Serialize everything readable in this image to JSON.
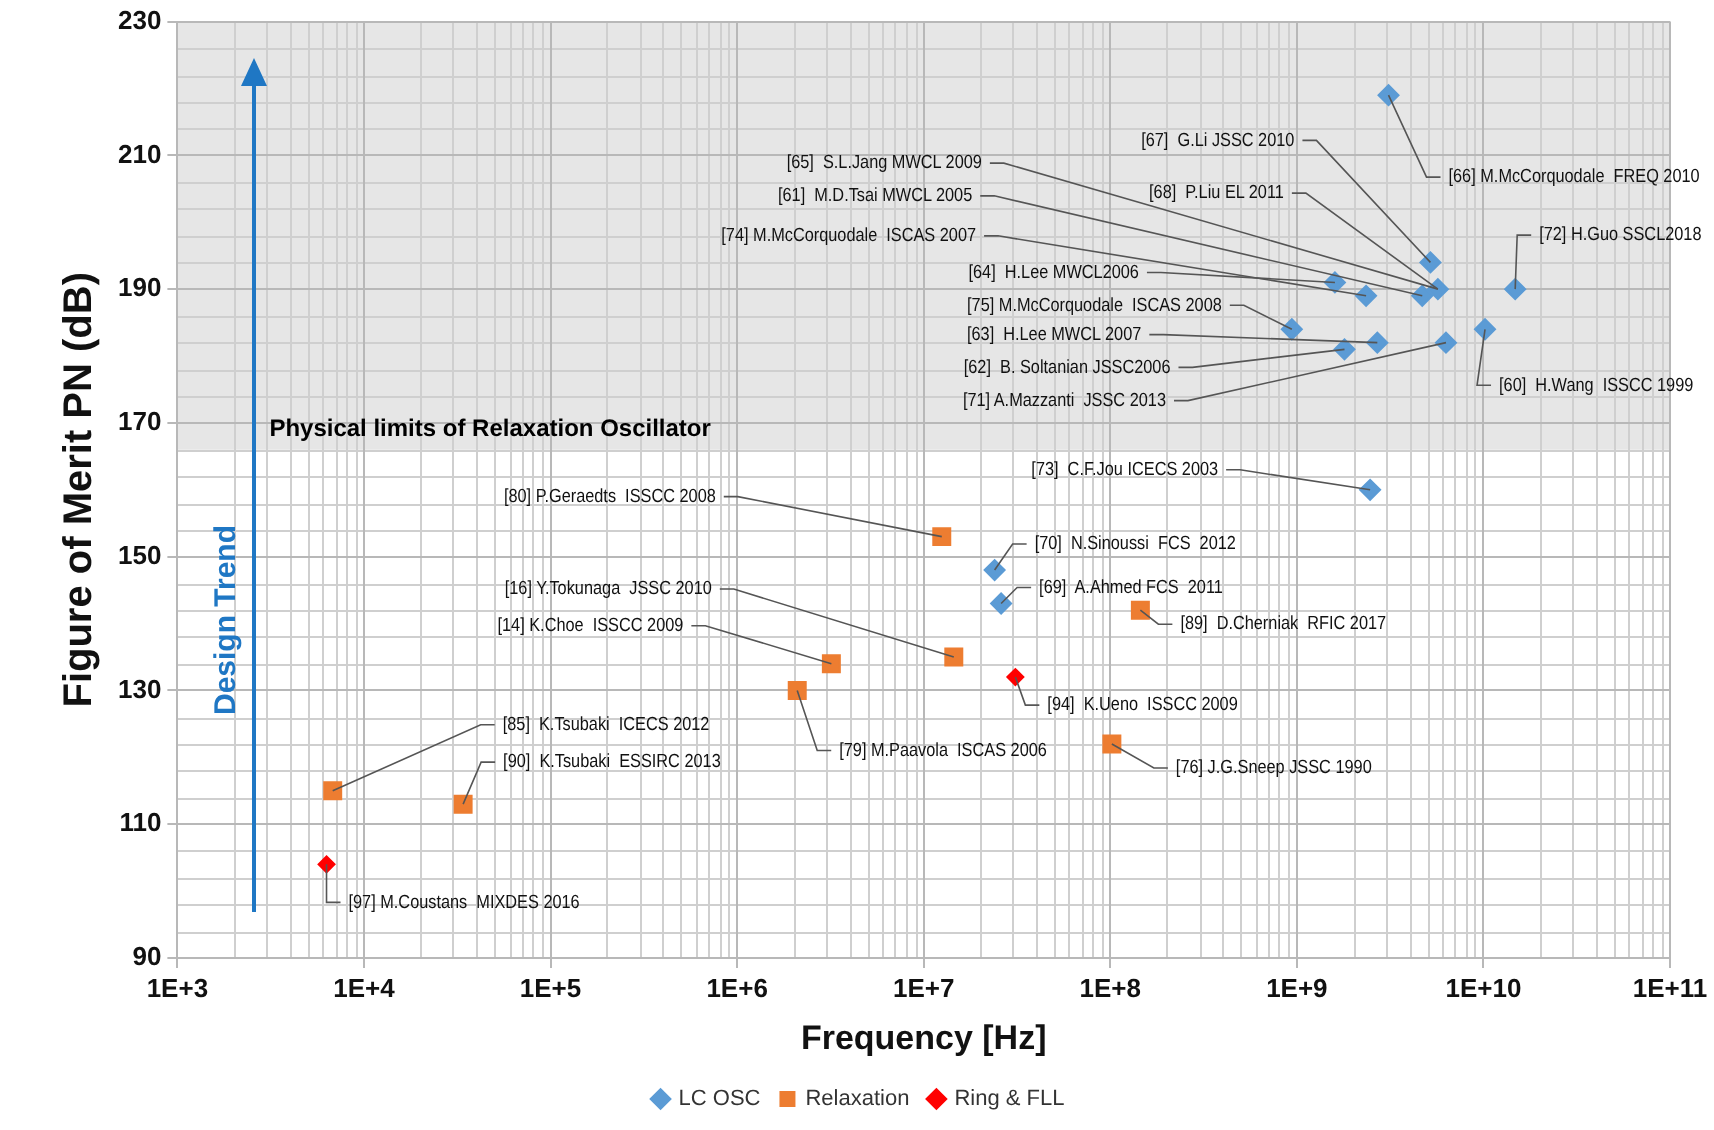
{
  "chart_data": {
    "type": "scatter",
    "xlabel": "Frequency [Hz]",
    "ylabel": "Figure of Merit PN (dB)",
    "log": "x",
    "grid": true,
    "legend": "bottom",
    "xlim": [
      1000,
      100000000000
    ],
    "xticks": [
      {
        "value": 1000,
        "label": "1E+3"
      },
      {
        "value": 10000,
        "label": "1E+4"
      },
      {
        "value": 100000,
        "label": "1E+5"
      },
      {
        "value": 1000000,
        "label": "1E+6"
      },
      {
        "value": 10000000,
        "label": "1E+7"
      },
      {
        "value": 100000000,
        "label": "1E+8"
      },
      {
        "value": 1000000000,
        "label": "1E+9"
      },
      {
        "value": 10000000000,
        "label": "1E+10"
      },
      {
        "value": 100000000000,
        "label": "1E+11"
      }
    ],
    "ylim": [
      90,
      230
    ],
    "yticks": [
      90,
      110,
      130,
      150,
      170,
      190,
      210,
      230
    ],
    "bands": [
      {
        "axis": "y",
        "from": 166,
        "to": 230,
        "label": "Physical limits of Relaxation Oscillator",
        "color": "#e6e6e6"
      }
    ],
    "series": [
      {
        "name": "LC OSC",
        "color": "#5b9bd5",
        "marker": "diamond",
        "x": [
          3100000000,
          5200000000,
          5700000000,
          4700000000,
          2350000000,
          1600000000,
          940000000,
          2700000000,
          1800000000,
          6300000000,
          14800000000,
          10200000000,
          2470000000,
          24000000,
          26000000
        ],
        "values": [
          219,
          194,
          190,
          189,
          189,
          191,
          184,
          182,
          181,
          182,
          190,
          184,
          160,
          148,
          143
        ]
      },
      {
        "name": "Relaxation",
        "color": "#ed7d31",
        "marker": "square",
        "x": [
          12500000,
          14500000,
          3200000,
          2100000,
          6800,
          34000,
          145000000,
          102000000
        ],
        "values": [
          153,
          135,
          134,
          130,
          115,
          113,
          142,
          122
        ]
      },
      {
        "name": "Ring & FLL",
        "color": "#ff0000",
        "marker": "diamond",
        "x": [
          31000000,
          6300
        ],
        "values": [
          132,
          104
        ]
      }
    ],
    "annotations": [
      "Design Trend",
      {
        "text": "[66] M.McCorquodale  FREQ 2010",
        "x": 3100000000,
        "y": 219
      },
      {
        "text": "[67]  G.Li JSSC 2010",
        "x": 5200000000,
        "y": 194
      },
      {
        "text": "[65]  S.L.Jang MWCL 2009",
        "x": 5700000000,
        "y": 190
      },
      {
        "text": "[68]  P.Liu EL 2011",
        "x": 5700000000,
        "y": 190
      },
      {
        "text": "[61]  M.D.Tsai MWCL 2005",
        "x": 4700000000,
        "y": 189
      },
      {
        "text": "[74] M.McCorquodale  ISCAS 2007",
        "x": 2350000000,
        "y": 189
      },
      {
        "text": "[64]  H.Lee MWCL2006",
        "x": 1600000000,
        "y": 191
      },
      {
        "text": "[75] M.McCorquodale  ISCAS 2008",
        "x": 940000000,
        "y": 184
      },
      {
        "text": "[63]  H.Lee MWCL 2007",
        "x": 2700000000,
        "y": 182
      },
      {
        "text": "[62]  B. Soltanian JSSC2006",
        "x": 1800000000,
        "y": 181
      },
      {
        "text": "[71] A.Mazzanti  JSSC 2013",
        "x": 6300000000,
        "y": 182
      },
      {
        "text": "[72] H.Guo SSCL2018",
        "x": 14800000000,
        "y": 190
      },
      {
        "text": "[60]  H.Wang  ISSCC 1999",
        "x": 10200000000,
        "y": 184
      },
      {
        "text": "[73]  C.F.Jou ICECS 2003",
        "x": 2470000000,
        "y": 160
      },
      {
        "text": "[70]  N.Sinoussi  FCS  2012",
        "x": 24000000,
        "y": 148
      },
      {
        "text": "[69]  A.Ahmed FCS  2011",
        "x": 26000000,
        "y": 143
      },
      {
        "text": "[80] P.Geraedts  ISSCC 2008",
        "x": 12500000,
        "y": 153
      },
      {
        "text": "[16] Y.Tokunaga  JSSC 2010",
        "x": 14500000,
        "y": 135
      },
      {
        "text": "[14] K.Choe  ISSCC 2009",
        "x": 3200000,
        "y": 134
      },
      {
        "text": "[79] M.Paavola  ISCAS 2006",
        "x": 2100000,
        "y": 130
      },
      {
        "text": "[85]  K.Tsubaki  ICECS 2012",
        "x": 6800,
        "y": 115
      },
      {
        "text": "[90]  K.Tsubaki  ESSIRC 2013",
        "x": 34000,
        "y": 113
      },
      {
        "text": "[89]  D.Cherniak  RFIC 2017",
        "x": 145000000,
        "y": 142
      },
      {
        "text": "[76] J.G.Sneep JSSC 1990",
        "x": 102000000,
        "y": 122
      },
      {
        "text": "[94]  K.Ueno  ISSCC 2009",
        "x": 31000000,
        "y": 132
      },
      {
        "text": "[97] M.Coustans  MIXDES 2016",
        "x": 6300,
        "y": 104
      }
    ]
  }
}
